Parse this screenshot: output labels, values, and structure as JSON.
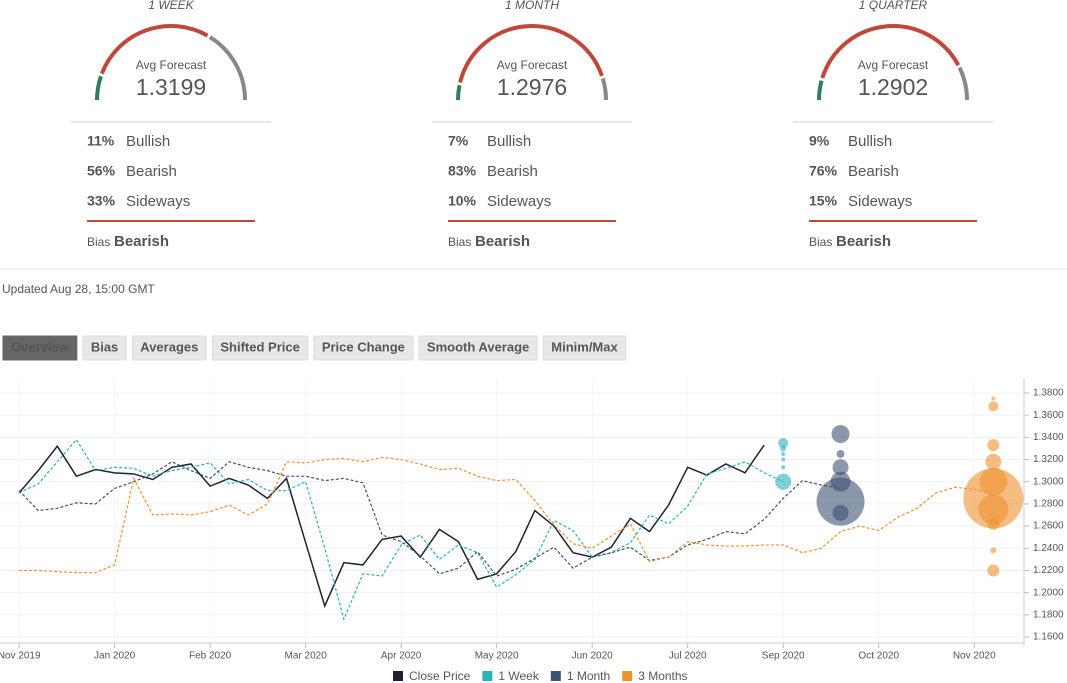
{
  "forecasts": [
    {
      "period": "1 WEEK",
      "avg_label": "Avg Forecast",
      "avg_value": 1.3199,
      "sentiment": [
        {
          "name": "Bullish",
          "value": 11,
          "label": "11%"
        },
        {
          "name": "Bearish",
          "value": 56,
          "label": "56%"
        },
        {
          "name": "Sideways",
          "value": 33,
          "label": "33%"
        }
      ],
      "bias_label": "Bias",
      "bias": "Bearish"
    },
    {
      "period": "1 MONTH",
      "avg_label": "Avg Forecast",
      "avg_value": 1.2976,
      "sentiment": [
        {
          "name": "Bullish",
          "value": 7,
          "label": "7%"
        },
        {
          "name": "Bearish",
          "value": 83,
          "label": "83%"
        },
        {
          "name": "Sideways",
          "value": 10,
          "label": "10%"
        }
      ],
      "bias_label": "Bias",
      "bias": "Bearish"
    },
    {
      "period": "1 QUARTER",
      "avg_label": "Avg Forecast",
      "avg_value": 1.2902,
      "sentiment": [
        {
          "name": "Bullish",
          "value": 9,
          "label": "9%"
        },
        {
          "name": "Bearish",
          "value": 76,
          "label": "76%"
        },
        {
          "name": "Sideways",
          "value": 15,
          "label": "15%"
        }
      ],
      "bias_label": "Bias",
      "bias": "Bearish"
    }
  ],
  "updated": "Updated Aug 28, 15:00 GMT",
  "tabs": [
    "Overview",
    "Bias",
    "Averages",
    "Shifted Price",
    "Price Change",
    "Smooth Average",
    "Minim/Max"
  ],
  "active_tab": 0,
  "chart_data": {
    "type": "line",
    "xlim": [
      -1,
      52.5
    ],
    "ylim": [
      1.1546,
      1.3935
    ],
    "grid": true,
    "xticks": [
      {
        "value": 0,
        "label": "Nov 2019"
      },
      {
        "value": 5,
        "label": "Jan 2020"
      },
      {
        "value": 10,
        "label": "Feb 2020"
      },
      {
        "value": 15,
        "label": "Mar 2020"
      },
      {
        "value": 20,
        "label": "Apr 2020"
      },
      {
        "value": 25,
        "label": "May 2020"
      },
      {
        "value": 30,
        "label": "Jun 2020"
      },
      {
        "value": 35,
        "label": "Jul 2020"
      },
      {
        "value": 40,
        "label": "Sep 2020"
      },
      {
        "value": 45,
        "label": "Oct 2020"
      },
      {
        "value": 50,
        "label": "Nov 2020"
      }
    ],
    "yticks": [
      {
        "value": 1.16,
        "label": "1.1600"
      },
      {
        "value": 1.18,
        "label": "1.1800"
      },
      {
        "value": 1.2,
        "label": "1.2000"
      },
      {
        "value": 1.22,
        "label": "1.2200"
      },
      {
        "value": 1.24,
        "label": "1.2400"
      },
      {
        "value": 1.26,
        "label": "1.2600"
      },
      {
        "value": 1.28,
        "label": "1.2800"
      },
      {
        "value": 1.3,
        "label": "1.3000"
      },
      {
        "value": 1.32,
        "label": "1.3200"
      },
      {
        "value": 1.34,
        "label": "1.3400"
      },
      {
        "value": 1.36,
        "label": "1.3600"
      },
      {
        "value": 1.38,
        "label": "1.3800"
      }
    ],
    "series": [
      {
        "name": "Close Price",
        "color": "#1f2230",
        "dashed": false,
        "x": [
          0,
          1,
          2,
          3,
          4,
          5,
          6,
          7,
          8,
          9,
          10,
          11,
          12,
          13,
          14,
          15,
          16,
          17,
          18,
          19,
          20,
          21,
          22,
          23,
          24,
          25,
          26,
          27,
          28,
          29,
          30,
          31,
          32,
          33,
          34,
          35,
          36,
          37,
          38,
          39
        ],
        "values": [
          1.29,
          1.31,
          1.332,
          1.305,
          1.311,
          1.308,
          1.307,
          1.302,
          1.313,
          1.316,
          1.296,
          1.303,
          1.297,
          1.285,
          1.303,
          1.245,
          1.188,
          1.227,
          1.225,
          1.248,
          1.251,
          1.232,
          1.257,
          1.246,
          1.212,
          1.217,
          1.237,
          1.274,
          1.26,
          1.236,
          1.232,
          1.241,
          1.267,
          1.255,
          1.279,
          1.313,
          1.306,
          1.316,
          1.308,
          1.333
        ]
      },
      {
        "name": "1 Week",
        "color": "#2ab3bd",
        "dashed": true,
        "x": [
          0,
          1,
          2,
          3,
          4,
          5,
          6,
          7,
          8,
          9,
          10,
          11,
          12,
          13,
          14,
          15,
          16,
          17,
          18,
          19,
          20,
          21,
          22,
          23,
          24,
          25,
          26,
          27,
          28,
          29,
          30,
          31,
          32,
          33,
          34,
          35,
          36,
          37,
          38,
          39,
          40
        ],
        "values": [
          1.29,
          1.298,
          1.318,
          1.338,
          1.31,
          1.313,
          1.312,
          1.305,
          1.31,
          1.313,
          1.317,
          1.298,
          1.302,
          1.292,
          1.292,
          1.3,
          1.24,
          1.176,
          1.217,
          1.215,
          1.243,
          1.252,
          1.23,
          1.243,
          1.236,
          1.205,
          1.216,
          1.23,
          1.265,
          1.256,
          1.232,
          1.236,
          1.245,
          1.27,
          1.262,
          1.278,
          1.307,
          1.312,
          1.318,
          1.308,
          1.3
        ],
        "forecast_x": 40,
        "forecast_values": [
          1.3,
          1.335,
          1.33,
          1.325,
          1.32,
          1.313
        ],
        "forecast_sizes": [
          8,
          5,
          3,
          2,
          2,
          2
        ]
      },
      {
        "name": "1 Month",
        "color": "#3d5273",
        "dashed": true,
        "x": [
          0,
          1,
          2,
          3,
          4,
          5,
          6,
          7,
          8,
          9,
          10,
          11,
          12,
          13,
          14,
          15,
          16,
          17,
          18,
          19,
          20,
          21,
          22,
          23,
          24,
          25,
          26,
          27,
          28,
          29,
          30,
          31,
          32,
          33,
          34,
          35,
          36,
          37,
          38,
          39,
          40,
          41,
          42,
          43
        ],
        "values": [
          1.292,
          1.274,
          1.276,
          1.281,
          1.28,
          1.294,
          1.3,
          1.307,
          1.318,
          1.31,
          1.303,
          1.318,
          1.313,
          1.31,
          1.305,
          1.305,
          1.301,
          1.303,
          1.299,
          1.252,
          1.246,
          1.233,
          1.217,
          1.222,
          1.237,
          1.215,
          1.221,
          1.231,
          1.241,
          1.222,
          1.232,
          1.236,
          1.241,
          1.229,
          1.232,
          1.243,
          1.248,
          1.255,
          1.253,
          1.266,
          1.285,
          1.301,
          1.297,
          1.294
        ],
        "forecast_x": 43,
        "forecast_values": [
          1.343,
          1.325,
          1.313,
          1.3,
          1.282,
          1.272
        ],
        "forecast_sizes": [
          9,
          4,
          8,
          10,
          24,
          8
        ]
      },
      {
        "name": "3 Months",
        "color": "#ee912f",
        "dashed": true,
        "x": [
          0,
          1,
          2,
          3,
          4,
          5,
          6,
          7,
          8,
          9,
          10,
          11,
          12,
          13,
          14,
          15,
          16,
          17,
          18,
          19,
          20,
          21,
          22,
          23,
          24,
          25,
          26,
          27,
          28,
          29,
          30,
          31,
          32,
          33,
          34,
          35,
          36,
          37,
          38,
          39,
          40,
          41,
          42,
          43,
          44,
          45,
          46,
          47,
          48,
          49,
          50,
          51
        ],
        "values": [
          1.22,
          1.22,
          1.219,
          1.218,
          1.218,
          1.225,
          1.303,
          1.27,
          1.271,
          1.27,
          1.273,
          1.279,
          1.27,
          1.28,
          1.318,
          1.317,
          1.32,
          1.321,
          1.318,
          1.322,
          1.32,
          1.316,
          1.311,
          1.312,
          1.305,
          1.301,
          1.302,
          1.283,
          1.261,
          1.244,
          1.24,
          1.251,
          1.262,
          1.228,
          1.232,
          1.246,
          1.243,
          1.242,
          1.242,
          1.243,
          1.243,
          1.236,
          1.24,
          1.255,
          1.26,
          1.256,
          1.268,
          1.276,
          1.29,
          1.295,
          1.293,
          1.289
        ],
        "forecast_x": 51,
        "forecast_values": [
          1.375,
          1.368,
          1.333,
          1.318,
          1.3,
          1.285,
          1.275,
          1.262,
          1.238,
          1.22
        ],
        "forecast_sizes": [
          2,
          5,
          6,
          8,
          14,
          30,
          15,
          6,
          3,
          6
        ]
      }
    ]
  }
}
